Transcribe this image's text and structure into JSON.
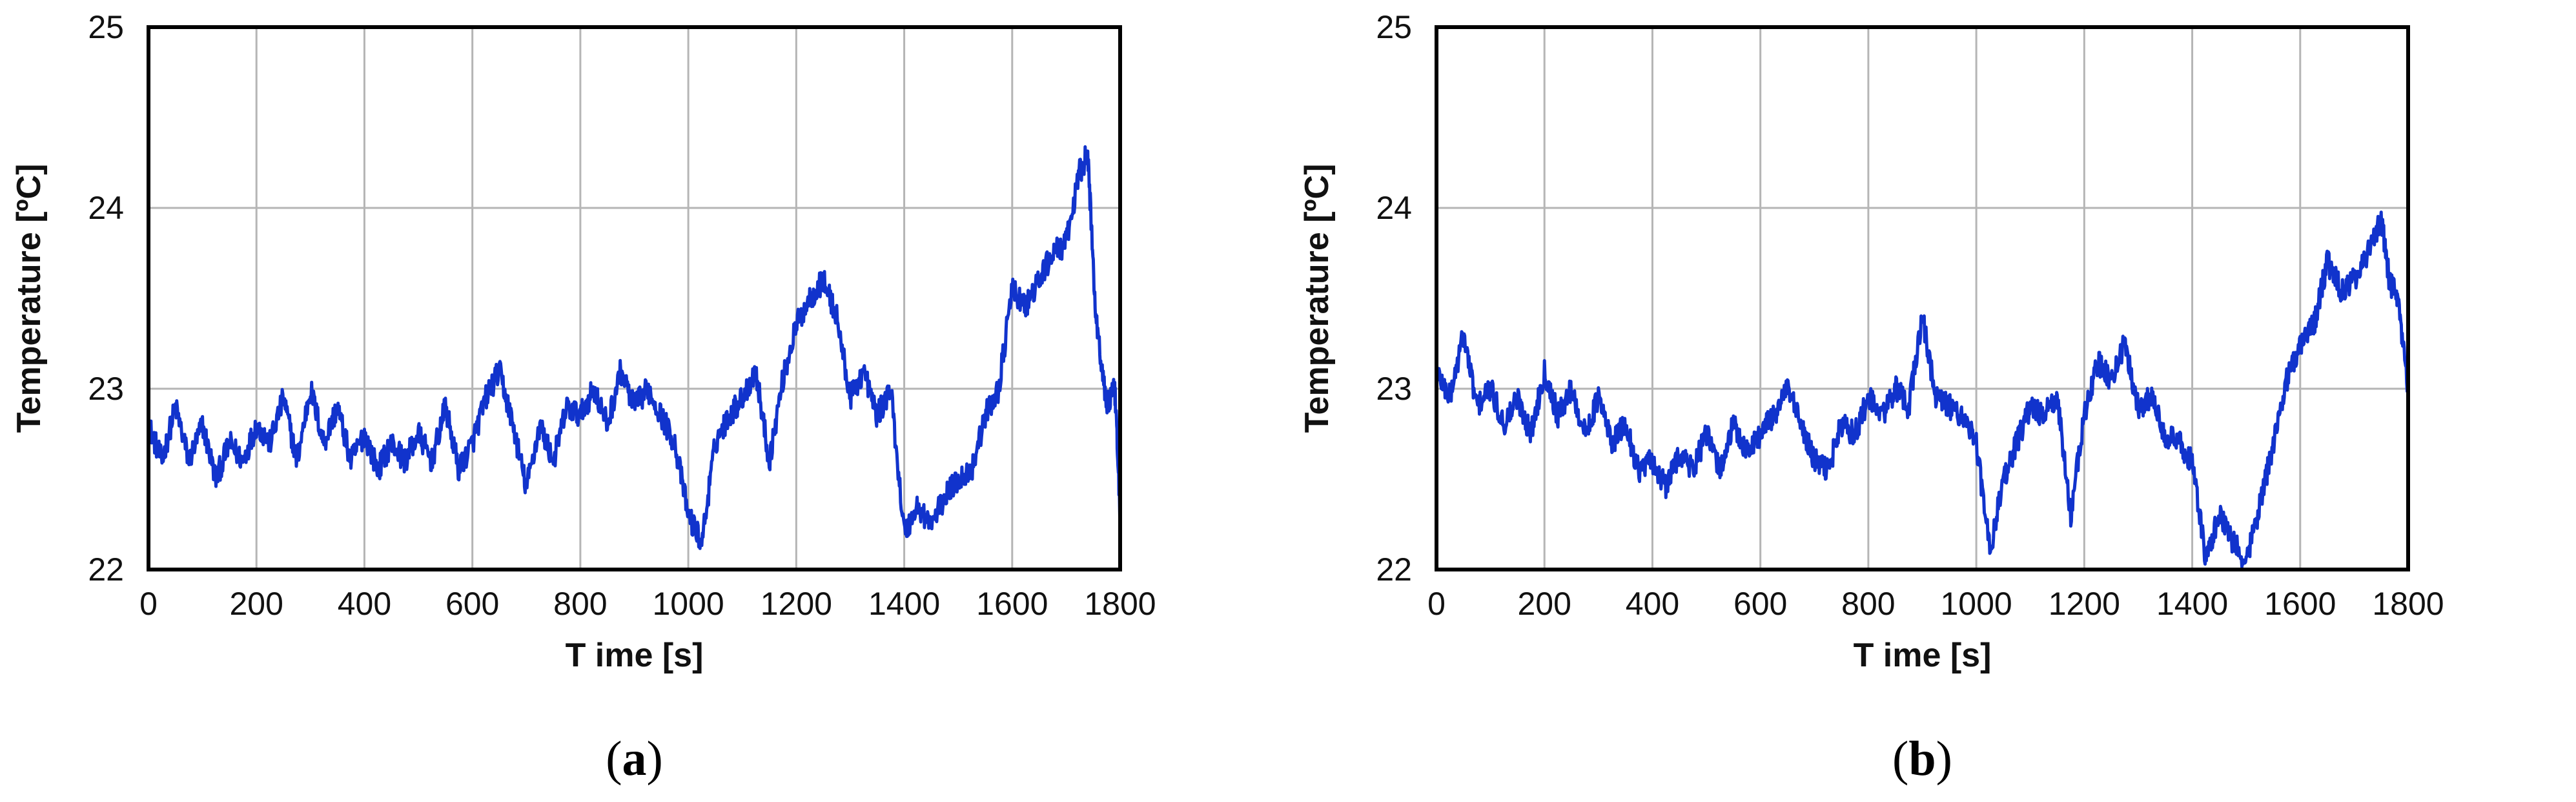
{
  "chart_data": [
    {
      "type": "line",
      "caption": "(a)",
      "xlabel": "T ime [s]",
      "ylabel": "Temperature [ºC]",
      "xlim": [
        0,
        1800
      ],
      "ylim": [
        22,
        25
      ],
      "xticks": [
        0,
        200,
        400,
        600,
        800,
        1000,
        1200,
        1400,
        1600,
        1800
      ],
      "yticks": [
        22,
        23,
        24,
        25
      ],
      "grid": true,
      "legend": "none",
      "line_color": "#1133cc",
      "series": [
        {
          "x": [
            0,
            25,
            50,
            75,
            100,
            125,
            150,
            175,
            200,
            225,
            250,
            275,
            300,
            325,
            350,
            375,
            400,
            425,
            450,
            475,
            500,
            525,
            550,
            575,
            600,
            625,
            650,
            675,
            700,
            725,
            750,
            775,
            800,
            825,
            850,
            875,
            900,
            925,
            950,
            975,
            1000,
            1025,
            1050,
            1075,
            1100,
            1125,
            1150,
            1175,
            1200,
            1225,
            1250,
            1275,
            1300,
            1325,
            1350,
            1375,
            1400,
            1425,
            1450,
            1475,
            1500,
            1525,
            1550,
            1575,
            1600,
            1625,
            1650,
            1675,
            1700,
            1725,
            1740,
            1755,
            1775,
            1790,
            1800
          ],
          "values": [
            22.8,
            22.6,
            22.9,
            22.6,
            22.8,
            22.5,
            22.7,
            22.6,
            22.8,
            22.7,
            22.95,
            22.6,
            23.0,
            22.7,
            22.9,
            22.6,
            22.75,
            22.55,
            22.7,
            22.6,
            22.75,
            22.6,
            22.9,
            22.55,
            22.7,
            22.95,
            23.1,
            22.8,
            22.45,
            22.8,
            22.6,
            22.9,
            22.85,
            23.0,
            22.8,
            23.1,
            22.9,
            23.0,
            22.85,
            22.7,
            22.3,
            22.15,
            22.7,
            22.85,
            22.95,
            23.1,
            22.6,
            23.05,
            23.35,
            23.5,
            23.6,
            23.4,
            22.95,
            23.1,
            22.85,
            23.0,
            22.2,
            22.35,
            22.25,
            22.4,
            22.5,
            22.55,
            22.85,
            23.0,
            23.55,
            23.45,
            23.6,
            23.75,
            23.8,
            24.2,
            24.3,
            23.4,
            22.9,
            23.0,
            22.3
          ]
        }
      ]
    },
    {
      "type": "line",
      "caption": "(b)",
      "xlabel": "T ime [s]",
      "ylabel": "Temperature [ºC]",
      "xlim": [
        0,
        1800
      ],
      "ylim": [
        22,
        25
      ],
      "xticks": [
        0,
        200,
        400,
        600,
        800,
        1000,
        1200,
        1400,
        1600,
        1800
      ],
      "yticks": [
        22,
        23,
        24,
        25
      ],
      "grid": true,
      "legend": "none",
      "line_color": "#1133cc",
      "series": [
        {
          "x": [
            0,
            25,
            50,
            75,
            100,
            125,
            150,
            175,
            200,
            225,
            250,
            275,
            300,
            325,
            350,
            375,
            400,
            425,
            450,
            475,
            500,
            525,
            550,
            575,
            600,
            625,
            650,
            675,
            700,
            725,
            750,
            775,
            800,
            825,
            850,
            875,
            900,
            925,
            950,
            975,
            1000,
            1025,
            1050,
            1075,
            1100,
            1125,
            1150,
            1175,
            1200,
            1225,
            1250,
            1275,
            1300,
            1325,
            1350,
            1375,
            1400,
            1425,
            1450,
            1475,
            1500,
            1525,
            1550,
            1575,
            1600,
            1625,
            1650,
            1675,
            1700,
            1725,
            1750,
            1765,
            1780,
            1800
          ],
          "values": [
            23.1,
            22.95,
            23.3,
            22.9,
            23.0,
            22.8,
            22.95,
            22.75,
            23.1,
            22.85,
            23.0,
            22.75,
            22.95,
            22.7,
            22.8,
            22.55,
            22.6,
            22.45,
            22.65,
            22.55,
            22.75,
            22.55,
            22.8,
            22.65,
            22.75,
            22.85,
            23.0,
            22.8,
            22.6,
            22.55,
            22.8,
            22.75,
            22.95,
            22.85,
            23.0,
            22.9,
            23.4,
            22.95,
            22.9,
            22.85,
            22.7,
            22.1,
            22.5,
            22.7,
            22.9,
            22.85,
            22.95,
            22.3,
            22.85,
            23.15,
            23.05,
            23.25,
            22.9,
            22.95,
            22.75,
            22.7,
            22.6,
            22.05,
            22.3,
            22.15,
            22.05,
            22.35,
            22.7,
            23.05,
            23.25,
            23.35,
            23.7,
            23.55,
            23.6,
            23.75,
            23.95,
            23.6,
            23.5,
            23.0
          ]
        }
      ]
    }
  ]
}
